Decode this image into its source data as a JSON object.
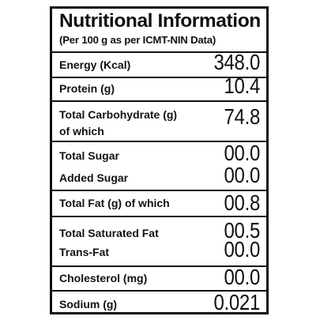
{
  "label": {
    "title": "Nutritional Information",
    "subtitle": "(Per 100 g as per ICMT-NIN Data)",
    "rows": [
      {
        "label": "Energy (Kcal)",
        "value": "348.0"
      },
      {
        "label": "Protein (g)",
        "value": "10.4"
      },
      {
        "label": "Total Carbohydrate (g)",
        "label2": "of which",
        "value": "74.8"
      },
      {
        "label": "Total Sugar",
        "value": "00.0"
      },
      {
        "label": "Added Sugar",
        "value": "00.0"
      },
      {
        "label": "Total Fat (g) of which",
        "value": "00.8"
      },
      {
        "label": "Total Saturated Fat",
        "value": "00.5"
      },
      {
        "label": "Trans-Fat",
        "value": "00.0"
      },
      {
        "label": "Cholesterol (mg)",
        "value": "00.0"
      },
      {
        "label": "Sodium (g)",
        "value": "0.021"
      }
    ]
  }
}
